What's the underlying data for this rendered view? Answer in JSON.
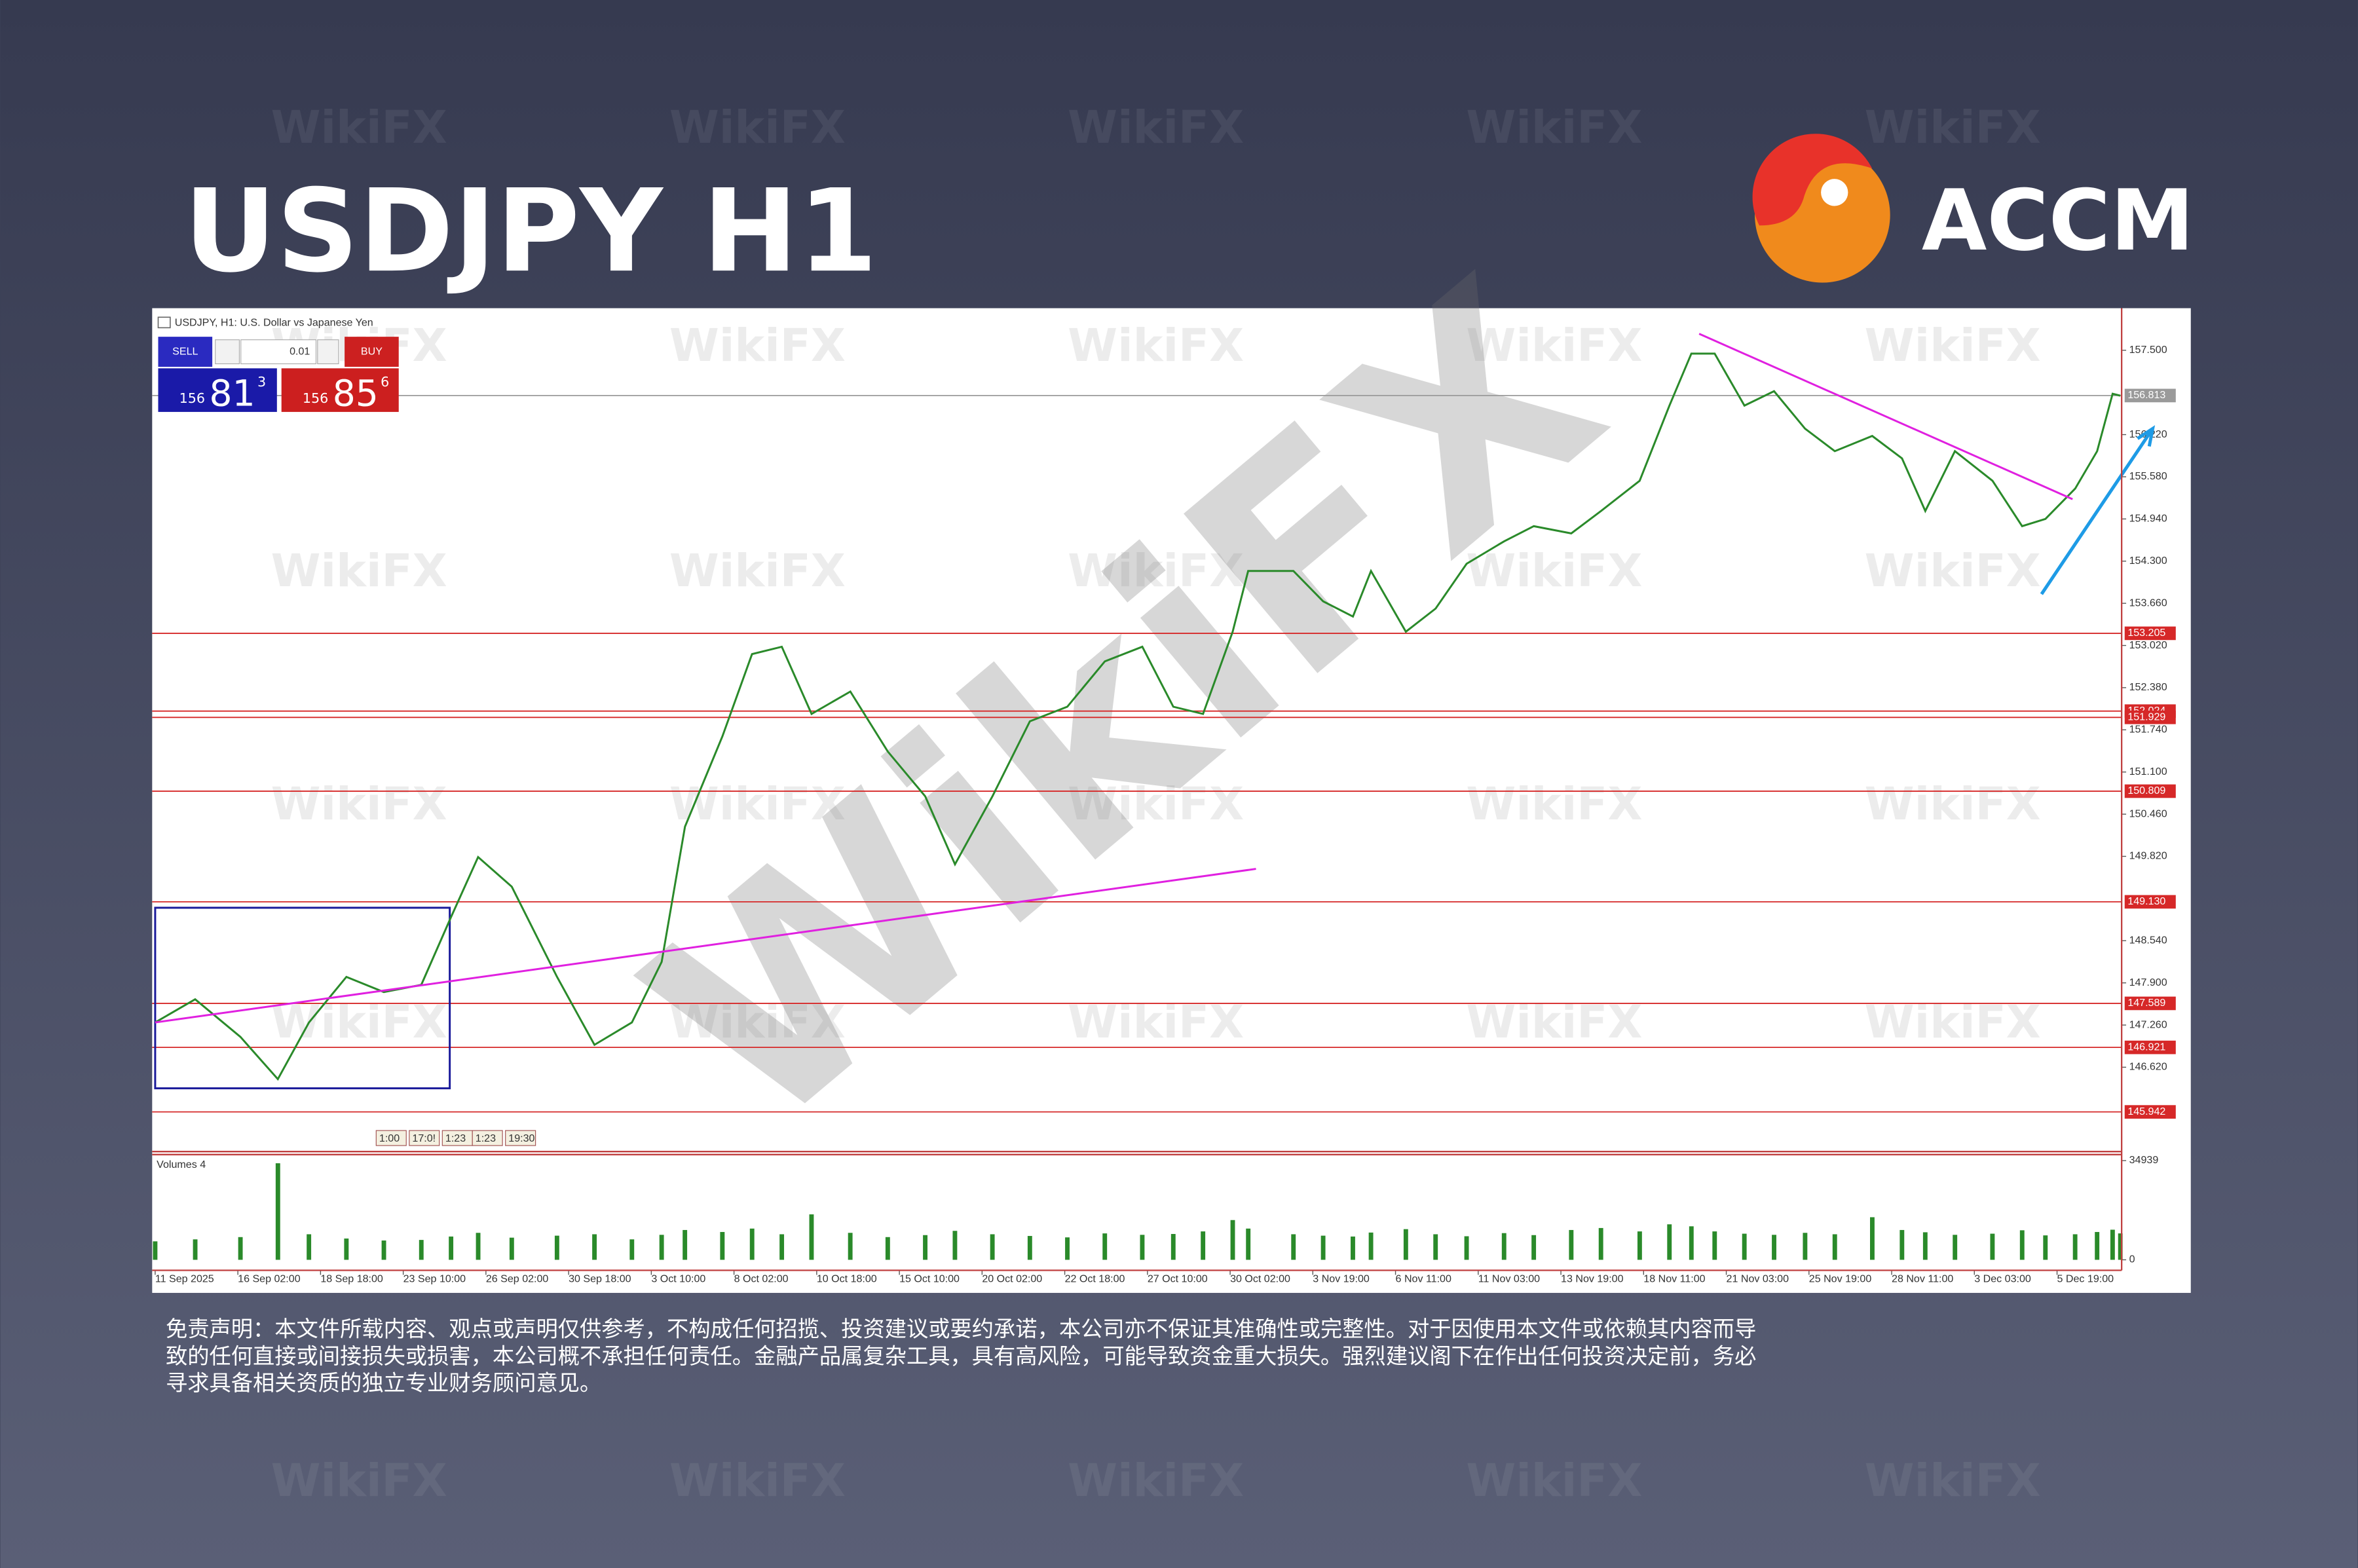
{
  "header": {
    "title": "USDJPY H1",
    "brand": "ACCM"
  },
  "watermark": "WikiFX",
  "trade_panel": {
    "sell": "SELL",
    "buy": "BUY",
    "lot": "0.01",
    "bid": {
      "big": "156",
      "pips": "81",
      "point": "3"
    },
    "ask": {
      "big": "156",
      "pips": "85",
      "point": "6"
    }
  },
  "chart_data": {
    "type": "line",
    "title": "USDJPY, H1: U.S. Dollar vs Japanese Yen",
    "x": [
      0,
      31,
      66,
      95,
      119,
      148,
      177,
      206,
      229,
      250,
      276,
      311,
      340,
      369,
      392,
      410,
      439,
      462,
      485,
      508,
      538,
      567,
      596,
      619,
      648,
      677,
      706,
      735,
      764,
      788,
      811,
      834,
      846,
      881,
      904,
      927,
      941,
      968,
      991,
      1015,
      1044,
      1067,
      1096,
      1119,
      1149,
      1172,
      1189,
      1207,
      1230,
      1253,
      1277,
      1300,
      1329,
      1352,
      1370,
      1393,
      1422,
      1445,
      1463,
      1486,
      1503,
      1515,
      1521
    ],
    "series": [
      {
        "color": "#2a8a2a",
        "values": [
          147.3,
          147.65,
          147.08,
          146.44,
          147.3,
          147.99,
          147.76,
          147.87,
          148.9,
          149.81,
          149.36,
          147.99,
          146.96,
          147.3,
          148.22,
          150.27,
          151.64,
          152.89,
          153.0,
          151.98,
          152.32,
          151.41,
          150.73,
          149.7,
          150.73,
          151.87,
          152.09,
          152.78,
          153.0,
          152.09,
          151.98,
          153.23,
          154.15,
          154.15,
          153.69,
          153.46,
          154.15,
          153.23,
          153.58,
          154.26,
          154.6,
          154.83,
          154.72,
          155.06,
          155.52,
          156.66,
          157.45,
          157.45,
          156.66,
          156.88,
          156.31,
          155.97,
          156.2,
          155.86,
          155.06,
          155.97,
          155.52,
          154.83,
          154.94,
          155.4,
          155.97,
          156.84,
          156.81
        ]
      }
    ],
    "xlim": [
      0,
      1522
    ],
    "ylim": [
      145.34,
      158.07
    ],
    "xticks": [
      {
        "value": 0,
        "label": "11 Sep 2025"
      },
      {
        "value": 64,
        "label": "16 Sep 02:00"
      },
      {
        "value": 128,
        "label": "18 Sep 18:00"
      },
      {
        "value": 192,
        "label": "23 Sep 10:00"
      },
      {
        "value": 256,
        "label": "26 Sep 02:00"
      },
      {
        "value": 320,
        "label": "30 Sep 18:00"
      },
      {
        "value": 384,
        "label": "3 Oct 10:00"
      },
      {
        "value": 448,
        "label": "8 Oct 02:00"
      },
      {
        "value": 512,
        "label": "10 Oct 18:00"
      },
      {
        "value": 576,
        "label": "15 Oct 10:00"
      },
      {
        "value": 640,
        "label": "20 Oct 02:00"
      },
      {
        "value": 704,
        "label": "22 Oct 18:00"
      },
      {
        "value": 768,
        "label": "27 Oct 10:00"
      },
      {
        "value": 832,
        "label": "30 Oct 02:00"
      },
      {
        "value": 896,
        "label": "3 Nov 19:00"
      },
      {
        "value": 960,
        "label": "6 Nov 11:00"
      },
      {
        "value": 1024,
        "label": "11 Nov 03:00"
      },
      {
        "value": 1088,
        "label": "13 Nov 19:00"
      },
      {
        "value": 1152,
        "label": "18 Nov 11:00"
      },
      {
        "value": 1216,
        "label": "21 Nov 03:00"
      },
      {
        "value": 1280,
        "label": "25 Nov 19:00"
      },
      {
        "value": 1344,
        "label": "28 Nov 11:00"
      },
      {
        "value": 1408,
        "label": "3 Dec 03:00"
      },
      {
        "value": 1472,
        "label": "5 Dec 19:00"
      }
    ],
    "yticks": [
      {
        "value": 157.5,
        "label": "157.500"
      },
      {
        "value": 156.22,
        "label": "156.220"
      },
      {
        "value": 155.58,
        "label": "155.580"
      },
      {
        "value": 154.94,
        "label": "154.940"
      },
      {
        "value": 154.3,
        "label": "154.300"
      },
      {
        "value": 153.66,
        "label": "153.660"
      },
      {
        "value": 153.02,
        "label": "153.020"
      },
      {
        "value": 152.38,
        "label": "152.380"
      },
      {
        "value": 151.74,
        "label": "151.740"
      },
      {
        "value": 151.1,
        "label": "151.100"
      },
      {
        "value": 150.46,
        "label": "150.460"
      },
      {
        "value": 149.82,
        "label": "149.820"
      },
      {
        "value": 148.54,
        "label": "148.540"
      },
      {
        "value": 147.9,
        "label": "147.900"
      },
      {
        "value": 147.26,
        "label": "147.260"
      },
      {
        "value": 146.62,
        "label": "146.620"
      }
    ],
    "current_price": {
      "value": 156.813,
      "label": "156.813",
      "color": "#9a9a9a"
    },
    "levels": [
      {
        "value": 153.205,
        "label": "153.205"
      },
      {
        "value": 152.024,
        "label": "152.024"
      },
      {
        "value": 151.929,
        "label": "151.929"
      },
      {
        "value": 150.809,
        "label": "150.809"
      },
      {
        "value": 149.13,
        "label": "149.130"
      },
      {
        "value": 147.589,
        "label": "147.589"
      },
      {
        "value": 146.921,
        "label": "146.921"
      },
      {
        "value": 145.942,
        "label": "145.942"
      }
    ],
    "level_color": "#d62828",
    "trendlines": [
      {
        "x": [
          0,
          852
        ],
        "y": [
          147.3,
          149.63
        ]
      },
      {
        "x": [
          1195,
          1484
        ],
        "y": [
          157.75,
          155.24
        ]
      }
    ],
    "trendline_color": "#e020e0",
    "box": {
      "x": [
        0,
        228
      ],
      "y": [
        146.3,
        149.04
      ],
      "color": "#1a1a9a"
    },
    "arrow": {
      "x": [
        1460,
        1546
      ],
      "y": [
        153.8,
        156.31
      ],
      "color": "#1e9be6"
    },
    "time_markers": [
      "1:00",
      "17:0!",
      "1:23",
      "1:23",
      "19:30"
    ],
    "volume": {
      "label": "Volumes 4",
      "color": "#2a8a2a",
      "values": [
        6500,
        7200,
        8000,
        34000,
        9000,
        7500,
        6800,
        7000,
        8200,
        9500,
        7800,
        8500,
        9000,
        7200,
        8800,
        10500,
        9800,
        11000,
        9000,
        16000,
        9500,
        8000,
        8700,
        10200,
        9000,
        8400,
        7900,
        9300,
        8800,
        9100,
        10000,
        14000,
        11000,
        9000,
        8500,
        8200,
        9600,
        10800,
        9000,
        8300,
        9400,
        8700,
        10500,
        11200,
        10000,
        12500,
        11800,
        10000,
        9200,
        8800,
        9500,
        9000,
        15000,
        10500,
        9700,
        8800,
        9200,
        10400,
        8600,
        9000,
        9800,
        10600,
        9300
      ],
      "ylim": [
        0,
        34939
      ],
      "yticks": [
        0,
        34939
      ]
    }
  },
  "disclaimer": [
    "免责声明：本文件所载内容、观点或声明仅供参考，不构成任何招揽、投资建议或要约承诺，本公司亦不保证其准确性或完整性。对于因使用本文件或依赖其内容而导",
    "致的任何直接或间接损失或损害，本公司概不承担任何责任。金融产品属复杂工具，具有高风险，可能导致资金重大损失。强烈建议阁下在作出任何投资决定前，务必",
    "寻求具备相关资质的独立专业财务顾问意见。"
  ]
}
